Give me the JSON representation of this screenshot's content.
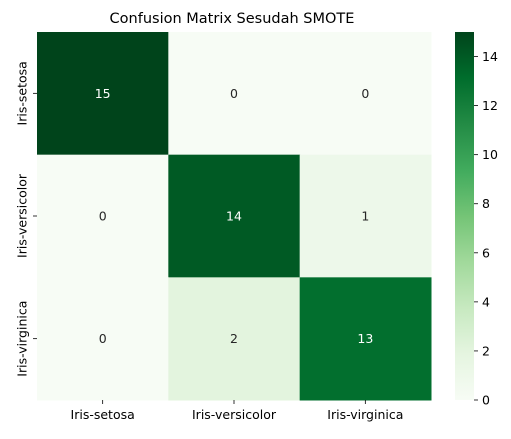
{
  "chart_data": {
    "type": "heatmap",
    "title": "Confusion Matrix Sesudah SMOTE",
    "xlabel": "",
    "ylabel": "",
    "x_categories": [
      "Iris-setosa",
      "Iris-versicolor",
      "Iris-virginica"
    ],
    "y_categories": [
      "Iris-setosa",
      "Iris-versicolor",
      "Iris-virginica"
    ],
    "values": [
      [
        15,
        0,
        0
      ],
      [
        0,
        14,
        1
      ],
      [
        0,
        2,
        13
      ]
    ],
    "annotations": true,
    "colormap": "Greens",
    "color_range": [
      0,
      15
    ],
    "colorbar": {
      "ticks": [
        0,
        2,
        4,
        6,
        8,
        10,
        12,
        14
      ]
    },
    "grid": false
  }
}
